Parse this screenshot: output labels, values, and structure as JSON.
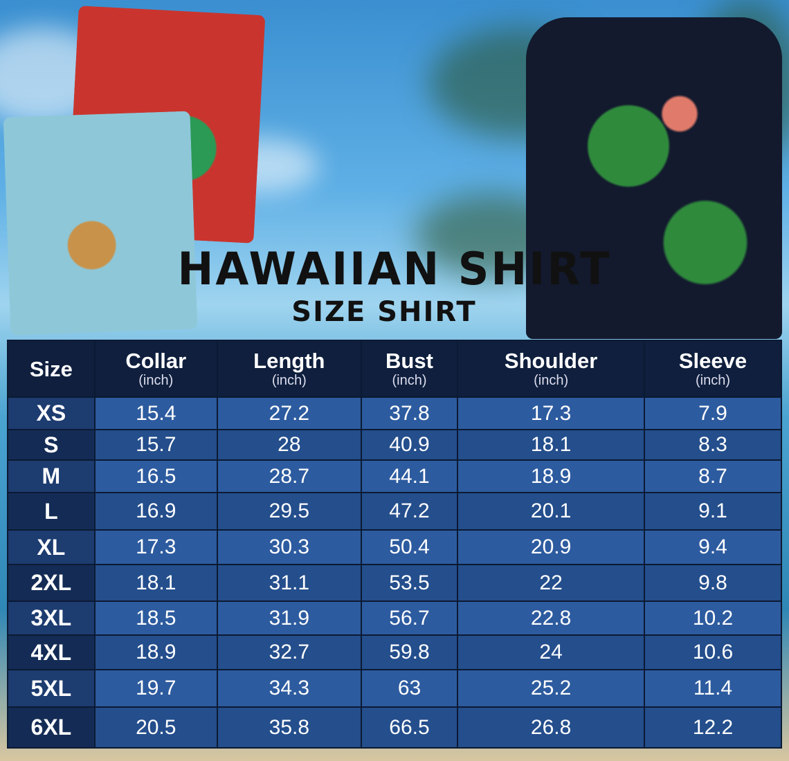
{
  "title": "HAWAIIAN SHIRT",
  "subtitle": "SIZE SHIRT",
  "colors": {
    "header": "#0f1f3d",
    "row_light": "#2d5b9f",
    "row_dark": "#244e8c",
    "size_col": "#142c55"
  },
  "table": {
    "headers": [
      {
        "label": "Size",
        "unit": ""
      },
      {
        "label": "Collar",
        "unit": "(inch)"
      },
      {
        "label": "Length",
        "unit": "(inch)"
      },
      {
        "label": "Bust",
        "unit": "(inch)"
      },
      {
        "label": "Shoulder",
        "unit": "(inch)"
      },
      {
        "label": "Sleeve",
        "unit": "(inch)"
      }
    ],
    "rows": [
      [
        "XS",
        "15.4",
        "27.2",
        "37.8",
        "17.3",
        "7.9"
      ],
      [
        "S",
        "15.7",
        "28",
        "40.9",
        "18.1",
        "8.3"
      ],
      [
        "M",
        "16.5",
        "28.7",
        "44.1",
        "18.9",
        "8.7"
      ],
      [
        "L",
        "16.9",
        "29.5",
        "47.2",
        "20.1",
        "9.1"
      ],
      [
        "XL",
        "17.3",
        "30.3",
        "50.4",
        "20.9",
        "9.4"
      ],
      [
        "2XL",
        "18.1",
        "31.1",
        "53.5",
        "22",
        "9.8"
      ],
      [
        "3XL",
        "18.5",
        "31.9",
        "56.7",
        "22.8",
        "10.2"
      ],
      [
        "4XL",
        "18.9",
        "32.7",
        "59.8",
        "24",
        "10.6"
      ],
      [
        "5XL",
        "19.7",
        "34.3",
        "63",
        "25.2",
        "11.4"
      ],
      [
        "6XL",
        "20.5",
        "35.8",
        "66.5",
        "26.8",
        "12.2"
      ]
    ]
  }
}
